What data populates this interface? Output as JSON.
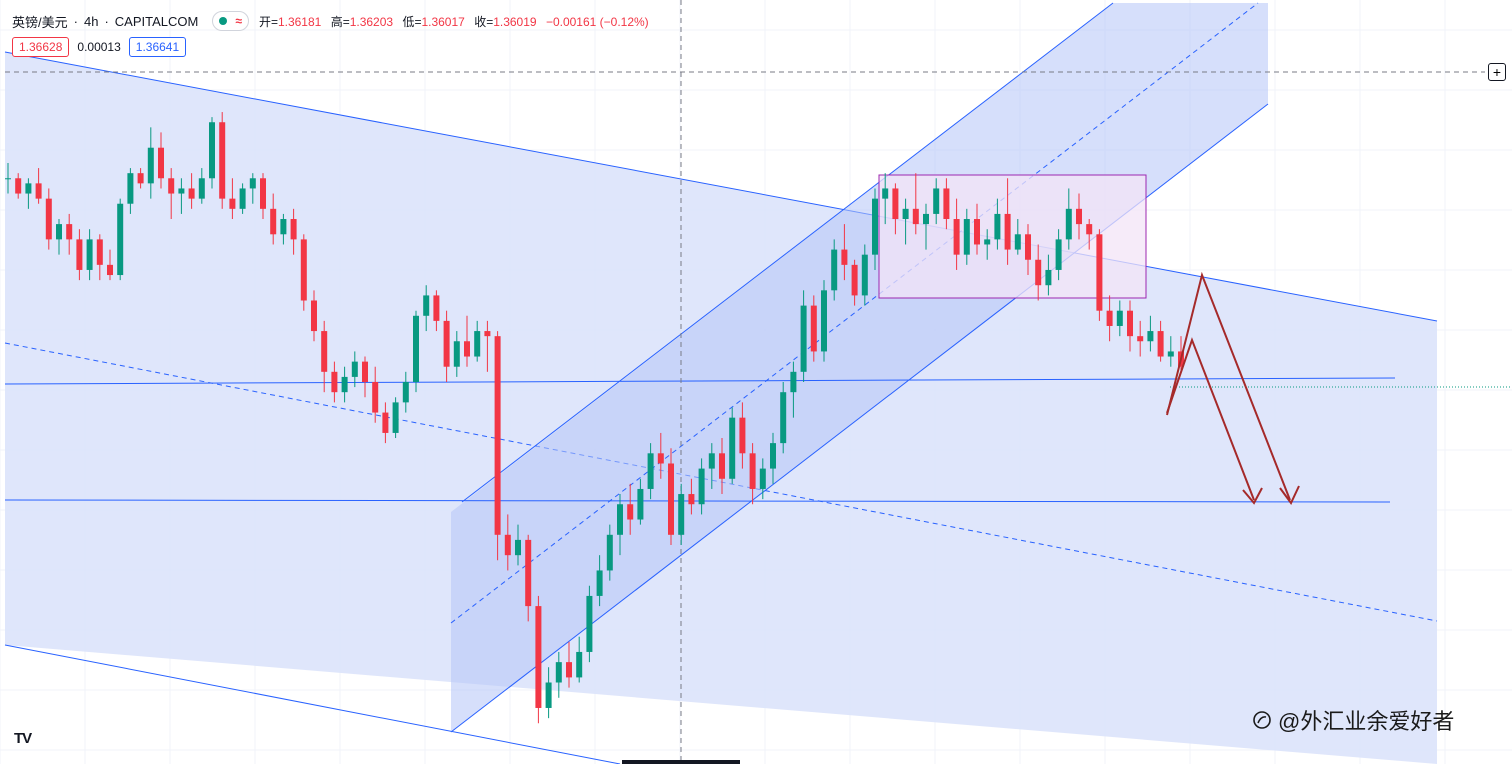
{
  "legend": {
    "symbol": "英镑/美元",
    "interval": "4h",
    "exchange": "CAPITALCOM",
    "status_color": "#089981",
    "status_icon": "wave-icon",
    "open_label": "开=",
    "open": "1.36181",
    "high_label": "高=",
    "high": "1.36203",
    "low_label": "低=",
    "low": "1.36017",
    "close_label": "收=",
    "close": "1.36019",
    "change": "−0.00161 (−0.12%)"
  },
  "quotes": {
    "bid": "1.36628",
    "spread": "0.00013",
    "ask": "1.36641"
  },
  "branding": {
    "tv_logo": "TV",
    "watermark": "@外汇业余爱好者"
  },
  "colors": {
    "up": "#089981",
    "down": "#f23645",
    "channel_fill": "#dbe3fb",
    "channel_line": "#2962ff",
    "rect_fill": "#f3e4f7",
    "rect_line": "#9c27b0",
    "arrow": "#a52a2a"
  },
  "chart_data": {
    "type": "candlestick",
    "interval": "4h",
    "ylim": [
      1.3525,
      1.3675
    ],
    "ohlc": [
      [
        1.364,
        1.3643,
        1.3637,
        1.364
      ],
      [
        1.364,
        1.3641,
        1.3636,
        1.3637
      ],
      [
        1.3637,
        1.364,
        1.3634,
        1.3639
      ],
      [
        1.3639,
        1.3642,
        1.3635,
        1.3636
      ],
      [
        1.3636,
        1.3638,
        1.3626,
        1.3628
      ],
      [
        1.3628,
        1.3632,
        1.3625,
        1.3631
      ],
      [
        1.3631,
        1.3633,
        1.3625,
        1.3628
      ],
      [
        1.3628,
        1.363,
        1.362,
        1.3622
      ],
      [
        1.3622,
        1.363,
        1.362,
        1.3628
      ],
      [
        1.3628,
        1.3629,
        1.362,
        1.3623
      ],
      [
        1.3623,
        1.3626,
        1.362,
        1.3621
      ],
      [
        1.3621,
        1.3636,
        1.362,
        1.3635
      ],
      [
        1.3635,
        1.3642,
        1.3633,
        1.3641
      ],
      [
        1.3641,
        1.3642,
        1.3638,
        1.3639
      ],
      [
        1.3639,
        1.365,
        1.3636,
        1.3646
      ],
      [
        1.3646,
        1.3649,
        1.3638,
        1.364
      ],
      [
        1.364,
        1.3642,
        1.3632,
        1.3637
      ],
      [
        1.3637,
        1.364,
        1.3633,
        1.3638
      ],
      [
        1.3638,
        1.3641,
        1.3634,
        1.3636
      ],
      [
        1.3636,
        1.3642,
        1.3635,
        1.364
      ],
      [
        1.364,
        1.3652,
        1.3638,
        1.3651
      ],
      [
        1.3651,
        1.3653,
        1.3634,
        1.3636
      ],
      [
        1.3636,
        1.364,
        1.3632,
        1.3634
      ],
      [
        1.3634,
        1.3639,
        1.3633,
        1.3638
      ],
      [
        1.3638,
        1.3641,
        1.3635,
        1.364
      ],
      [
        1.364,
        1.3641,
        1.3632,
        1.3634
      ],
      [
        1.3634,
        1.3637,
        1.3627,
        1.3629
      ],
      [
        1.3629,
        1.3633,
        1.3627,
        1.3632
      ],
      [
        1.3632,
        1.3634,
        1.3625,
        1.3628
      ],
      [
        1.3628,
        1.3629,
        1.3614,
        1.3616
      ],
      [
        1.3616,
        1.3618,
        1.3608,
        1.361
      ],
      [
        1.361,
        1.3612,
        1.3598,
        1.3602
      ],
      [
        1.3602,
        1.3604,
        1.3596,
        1.3598
      ],
      [
        1.3598,
        1.3603,
        1.3596,
        1.3601
      ],
      [
        1.3601,
        1.3606,
        1.3599,
        1.3604
      ],
      [
        1.3604,
        1.3605,
        1.3597,
        1.36
      ],
      [
        1.36,
        1.3603,
        1.3592,
        1.3594
      ],
      [
        1.3594,
        1.3596,
        1.3588,
        1.359
      ],
      [
        1.359,
        1.3597,
        1.3589,
        1.3596
      ],
      [
        1.3596,
        1.3602,
        1.3594,
        1.36
      ],
      [
        1.36,
        1.3614,
        1.3598,
        1.3613
      ],
      [
        1.3613,
        1.3619,
        1.361,
        1.3617
      ],
      [
        1.3617,
        1.3618,
        1.361,
        1.3612
      ],
      [
        1.3612,
        1.3614,
        1.36,
        1.3603
      ],
      [
        1.3603,
        1.361,
        1.3601,
        1.3608
      ],
      [
        1.3608,
        1.3613,
        1.3603,
        1.3605
      ],
      [
        1.3605,
        1.3612,
        1.3604,
        1.361
      ],
      [
        1.361,
        1.3612,
        1.3602,
        1.3609
      ],
      [
        1.3609,
        1.361,
        1.3565,
        1.357
      ],
      [
        1.357,
        1.3574,
        1.3563,
        1.3566
      ],
      [
        1.3566,
        1.3572,
        1.3564,
        1.3569
      ],
      [
        1.3569,
        1.357,
        1.3553,
        1.3556
      ],
      [
        1.3556,
        1.3558,
        1.3533,
        1.3536
      ],
      [
        1.3536,
        1.3544,
        1.3534,
        1.3541
      ],
      [
        1.3541,
        1.3547,
        1.3538,
        1.3545
      ],
      [
        1.3545,
        1.3549,
        1.354,
        1.3542
      ],
      [
        1.3542,
        1.355,
        1.3541,
        1.3547
      ],
      [
        1.3547,
        1.356,
        1.3545,
        1.3558
      ],
      [
        1.3558,
        1.3566,
        1.3556,
        1.3563
      ],
      [
        1.3563,
        1.3572,
        1.3561,
        1.357
      ],
      [
        1.357,
        1.3578,
        1.3566,
        1.3576
      ],
      [
        1.3576,
        1.358,
        1.357,
        1.3573
      ],
      [
        1.3573,
        1.3581,
        1.3572,
        1.3579
      ],
      [
        1.3579,
        1.3588,
        1.3577,
        1.3586
      ],
      [
        1.3586,
        1.359,
        1.3581,
        1.3584
      ],
      [
        1.3584,
        1.3587,
        1.3568,
        1.357
      ],
      [
        1.357,
        1.358,
        1.3568,
        1.3578
      ],
      [
        1.3578,
        1.3581,
        1.3574,
        1.3576
      ],
      [
        1.3576,
        1.3585,
        1.3574,
        1.3583
      ],
      [
        1.3583,
        1.3588,
        1.3579,
        1.3586
      ],
      [
        1.3586,
        1.3589,
        1.3578,
        1.3581
      ],
      [
        1.3581,
        1.3595,
        1.358,
        1.3593
      ],
      [
        1.3593,
        1.3596,
        1.3583,
        1.3586
      ],
      [
        1.3586,
        1.3588,
        1.3576,
        1.3579
      ],
      [
        1.3579,
        1.3585,
        1.3577,
        1.3583
      ],
      [
        1.3583,
        1.359,
        1.358,
        1.3588
      ],
      [
        1.3588,
        1.36,
        1.3586,
        1.3598
      ],
      [
        1.3598,
        1.3604,
        1.3593,
        1.3602
      ],
      [
        1.3602,
        1.3618,
        1.36,
        1.3615
      ],
      [
        1.3615,
        1.3617,
        1.3604,
        1.3606
      ],
      [
        1.3606,
        1.362,
        1.3604,
        1.3618
      ],
      [
        1.3618,
        1.3628,
        1.3616,
        1.3626
      ],
      [
        1.3626,
        1.3631,
        1.362,
        1.3623
      ],
      [
        1.3623,
        1.3624,
        1.3615,
        1.3617
      ],
      [
        1.3617,
        1.3627,
        1.3615,
        1.3625
      ],
      [
        1.3625,
        1.3638,
        1.3622,
        1.3636
      ],
      [
        1.3636,
        1.3641,
        1.3631,
        1.3638
      ],
      [
        1.3638,
        1.3639,
        1.3629,
        1.3632
      ],
      [
        1.3632,
        1.3636,
        1.3627,
        1.3634
      ],
      [
        1.3634,
        1.3641,
        1.3629,
        1.3631
      ],
      [
        1.3631,
        1.3635,
        1.3626,
        1.3633
      ],
      [
        1.3633,
        1.364,
        1.3631,
        1.3638
      ],
      [
        1.3638,
        1.364,
        1.363,
        1.3632
      ],
      [
        1.3632,
        1.3636,
        1.3622,
        1.3625
      ],
      [
        1.3625,
        1.3634,
        1.3623,
        1.3632
      ],
      [
        1.3632,
        1.3635,
        1.3625,
        1.3627
      ],
      [
        1.3627,
        1.363,
        1.3624,
        1.3628
      ],
      [
        1.3628,
        1.3636,
        1.3626,
        1.3633
      ],
      [
        1.3633,
        1.364,
        1.3623,
        1.3626
      ],
      [
        1.3626,
        1.3632,
        1.3625,
        1.3629
      ],
      [
        1.3629,
        1.3631,
        1.3621,
        1.3624
      ],
      [
        1.3624,
        1.3627,
        1.3616,
        1.3619
      ],
      [
        1.3619,
        1.3625,
        1.3617,
        1.3622
      ],
      [
        1.3622,
        1.363,
        1.362,
        1.3628
      ],
      [
        1.3628,
        1.3638,
        1.3626,
        1.3634
      ],
      [
        1.3634,
        1.3637,
        1.3628,
        1.3631
      ],
      [
        1.3631,
        1.3632,
        1.3626,
        1.3629
      ],
      [
        1.3629,
        1.363,
        1.3612,
        1.3614
      ],
      [
        1.3614,
        1.3617,
        1.3608,
        1.3611
      ],
      [
        1.3611,
        1.3616,
        1.3609,
        1.3614
      ],
      [
        1.3614,
        1.3616,
        1.3606,
        1.3609
      ],
      [
        1.3609,
        1.3612,
        1.3605,
        1.3608
      ],
      [
        1.3608,
        1.3613,
        1.3606,
        1.361
      ],
      [
        1.361,
        1.3612,
        1.3604,
        1.3605
      ],
      [
        1.3605,
        1.3609,
        1.3603,
        1.3606
      ],
      [
        1.3606,
        1.3609,
        1.3602,
        1.3603
      ]
    ],
    "channels": [
      {
        "name": "",
        "style": "descending-channel"
      },
      {
        "name": "",
        "style": "ascending-channel"
      }
    ],
    "horizontal_levels": [
      1.361,
      1.359,
      1.3665
    ],
    "consolidation_box": {
      "from_bar": 87,
      "to_bar": 108,
      "high": 1.364,
      "low": 1.362
    },
    "projections": "two bearish zigzag arrows targeting 1.3590",
    "grid": true,
    "crosshair": true
  }
}
